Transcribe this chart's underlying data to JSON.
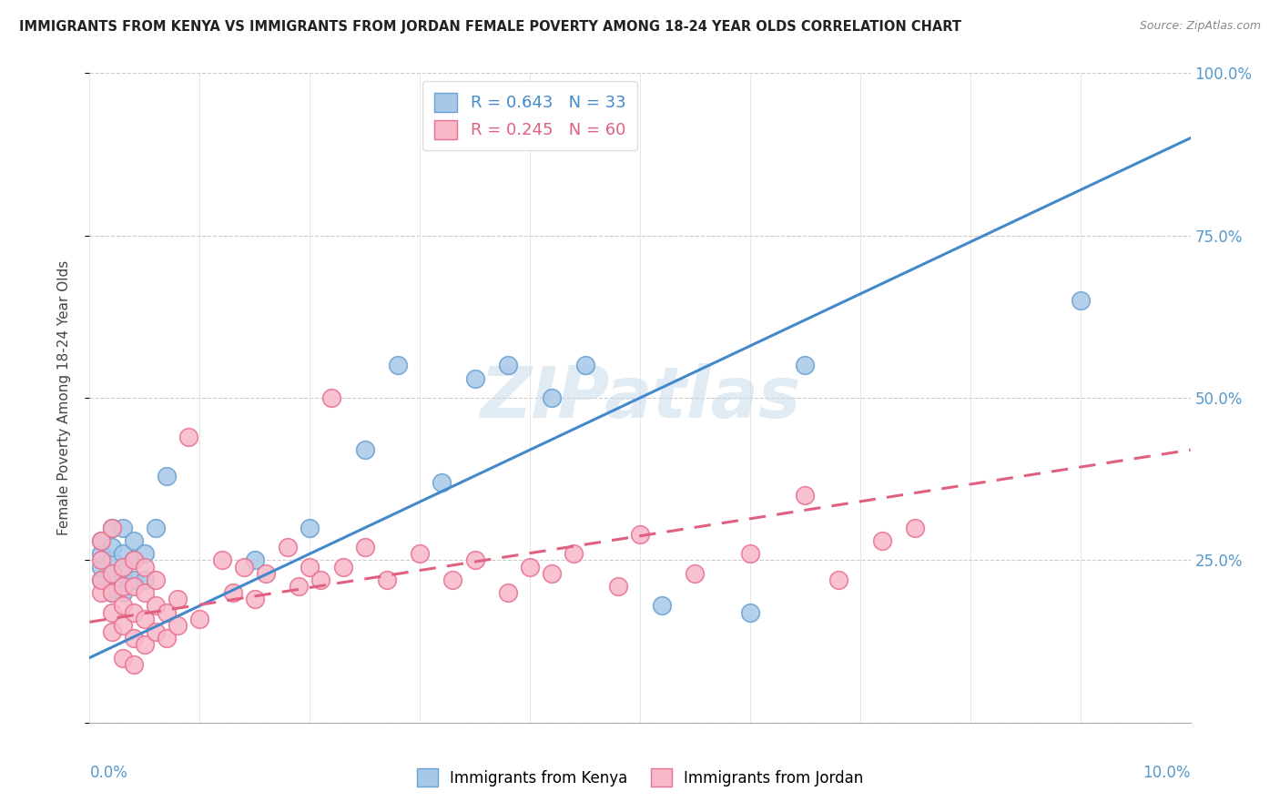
{
  "title": "IMMIGRANTS FROM KENYA VS IMMIGRANTS FROM JORDAN FEMALE POVERTY AMONG 18-24 YEAR OLDS CORRELATION CHART",
  "source": "Source: ZipAtlas.com",
  "ylabel": "Female Poverty Among 18-24 Year Olds",
  "xlim": [
    0,
    0.1
  ],
  "ylim": [
    0,
    1.0
  ],
  "yticks": [
    0.0,
    0.25,
    0.5,
    0.75,
    1.0
  ],
  "ytick_labels": [
    "",
    "25.0%",
    "50.0%",
    "75.0%",
    "100.0%"
  ],
  "kenya_color": "#a8c8e8",
  "kenya_edge_color": "#6aa0d0",
  "jordan_color": "#f8b8c8",
  "jordan_edge_color": "#e87090",
  "trend_kenya_color": "#4488cc",
  "trend_jordan_color": "#e06080",
  "kenya_R": 0.643,
  "kenya_N": 33,
  "jordan_R": 0.245,
  "jordan_N": 60,
  "watermark": "ZIPatlas",
  "kenya_trend_x0": 0.0,
  "kenya_trend_y0": 0.1,
  "kenya_trend_x1": 0.1,
  "kenya_trend_y1": 0.9,
  "jordan_trend_x0": 0.0,
  "jordan_trend_y0": 0.155,
  "jordan_trend_x1": 0.1,
  "jordan_trend_y1": 0.42,
  "kenya_points_x": [
    0.001,
    0.001,
    0.001,
    0.001,
    0.002,
    0.002,
    0.002,
    0.002,
    0.002,
    0.003,
    0.003,
    0.003,
    0.003,
    0.004,
    0.004,
    0.004,
    0.005,
    0.005,
    0.006,
    0.007,
    0.015,
    0.02,
    0.025,
    0.028,
    0.032,
    0.035,
    0.038,
    0.042,
    0.045,
    0.052,
    0.06,
    0.065,
    0.09
  ],
  "kenya_points_y": [
    0.22,
    0.24,
    0.26,
    0.28,
    0.2,
    0.23,
    0.25,
    0.27,
    0.3,
    0.2,
    0.23,
    0.26,
    0.3,
    0.22,
    0.25,
    0.28,
    0.22,
    0.26,
    0.3,
    0.38,
    0.25,
    0.3,
    0.42,
    0.55,
    0.37,
    0.53,
    0.55,
    0.5,
    0.55,
    0.18,
    0.17,
    0.55,
    0.65
  ],
  "jordan_points_x": [
    0.001,
    0.001,
    0.001,
    0.001,
    0.002,
    0.002,
    0.002,
    0.002,
    0.002,
    0.003,
    0.003,
    0.003,
    0.003,
    0.003,
    0.004,
    0.004,
    0.004,
    0.004,
    0.004,
    0.005,
    0.005,
    0.005,
    0.005,
    0.006,
    0.006,
    0.006,
    0.007,
    0.007,
    0.008,
    0.008,
    0.009,
    0.01,
    0.012,
    0.013,
    0.014,
    0.015,
    0.016,
    0.018,
    0.019,
    0.02,
    0.021,
    0.022,
    0.023,
    0.025,
    0.027,
    0.03,
    0.033,
    0.035,
    0.038,
    0.04,
    0.042,
    0.044,
    0.048,
    0.05,
    0.055,
    0.06,
    0.065,
    0.068,
    0.072,
    0.075
  ],
  "jordan_points_y": [
    0.2,
    0.22,
    0.25,
    0.28,
    0.14,
    0.17,
    0.2,
    0.23,
    0.3,
    0.15,
    0.18,
    0.21,
    0.24,
    0.1,
    0.13,
    0.17,
    0.21,
    0.25,
    0.09,
    0.12,
    0.16,
    0.2,
    0.24,
    0.14,
    0.18,
    0.22,
    0.13,
    0.17,
    0.15,
    0.19,
    0.44,
    0.16,
    0.25,
    0.2,
    0.24,
    0.19,
    0.23,
    0.27,
    0.21,
    0.24,
    0.22,
    0.5,
    0.24,
    0.27,
    0.22,
    0.26,
    0.22,
    0.25,
    0.2,
    0.24,
    0.23,
    0.26,
    0.21,
    0.29,
    0.23,
    0.26,
    0.35,
    0.22,
    0.28,
    0.3
  ]
}
